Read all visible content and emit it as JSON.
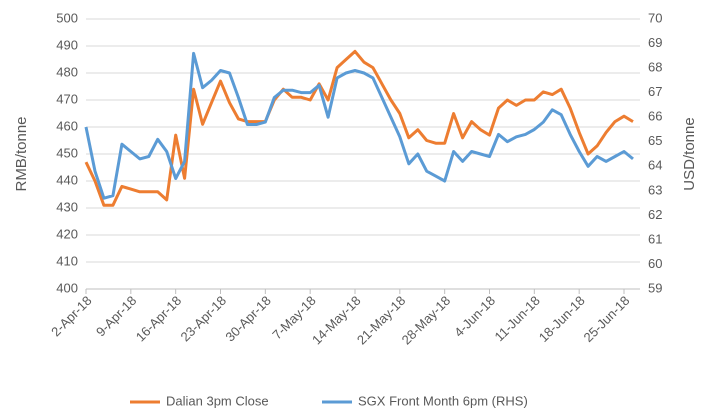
{
  "chart_data": {
    "type": "line",
    "y_label": "RMB/tonne",
    "y2_label": "USD/tonne",
    "categories": [
      "2-Apr-18",
      null,
      null,
      null,
      null,
      "9-Apr-18",
      null,
      null,
      null,
      null,
      "16-Apr-18",
      null,
      null,
      null,
      null,
      "23-Apr-18",
      null,
      null,
      null,
      null,
      "30-Apr-18",
      null,
      null,
      null,
      null,
      "7-May-18",
      null,
      null,
      null,
      null,
      "14-May-18",
      null,
      null,
      null,
      null,
      "21-May-18",
      null,
      null,
      null,
      null,
      "28-May-18",
      null,
      null,
      null,
      null,
      "4-Jun-18",
      null,
      null,
      null,
      null,
      "11-Jun-18",
      null,
      null,
      null,
      null,
      "18-Jun-18",
      null,
      null,
      null,
      null,
      "25-Jun-18",
      null
    ],
    "series": [
      {
        "name": "Dalian 3pm Close",
        "color": "#ed7d31",
        "values": [
          447,
          440,
          431,
          431,
          438,
          437,
          436,
          436,
          436,
          433,
          457,
          441,
          474,
          461,
          469,
          477,
          469,
          463,
          462,
          462,
          462,
          470,
          474,
          471,
          471,
          470,
          476,
          470,
          482,
          485,
          488,
          484,
          482,
          476,
          470,
          465,
          456,
          459,
          455,
          454,
          454,
          465,
          456,
          462,
          459,
          457,
          467,
          470,
          468,
          470,
          470,
          473,
          472,
          474,
          467,
          458,
          450,
          453,
          458,
          462,
          464,
          462
        ]
      },
      {
        "name": "SGX Front Month 6pm (RHS)",
        "color": "#5b9bd5",
        "axis": "y2",
        "values": [
          65.6,
          63.8,
          62.7,
          62.8,
          64.9,
          64.6,
          64.3,
          64.4,
          65.1,
          64.6,
          63.5,
          64.2,
          68.6,
          67.2,
          67.5,
          67.9,
          67.8,
          66.8,
          65.7,
          65.7,
          65.8,
          66.8,
          67.1,
          67.1,
          67.0,
          67.0,
          67.3,
          66.0,
          67.6,
          67.8,
          67.9,
          67.8,
          67.6,
          66.8,
          66.0,
          65.2,
          64.1,
          64.5,
          63.8,
          63.6,
          63.4,
          64.6,
          64.2,
          64.6,
          64.5,
          64.4,
          65.3,
          65.0,
          65.2,
          65.3,
          65.5,
          65.8,
          66.3,
          66.1,
          65.3,
          64.6,
          64.0,
          64.4,
          64.2,
          64.4,
          64.6,
          64.3
        ]
      }
    ],
    "ylim": [
      400,
      500
    ],
    "yticks": [
      400,
      410,
      420,
      430,
      440,
      450,
      460,
      470,
      480,
      490,
      500
    ],
    "y2lim": [
      59,
      70
    ],
    "y2ticks": [
      59,
      60,
      61,
      62,
      63,
      64,
      65,
      66,
      67,
      68,
      69,
      70
    ],
    "grid": true,
    "legend": "bottom"
  }
}
